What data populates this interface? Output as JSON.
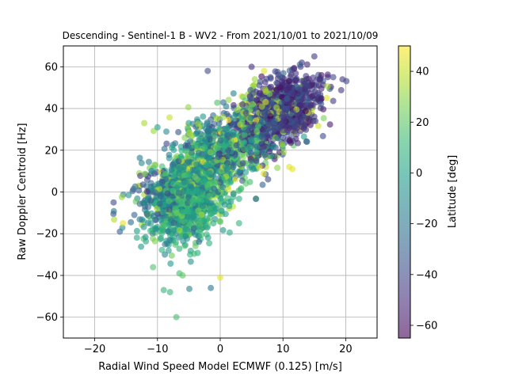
{
  "chart_data": {
    "type": "scatter",
    "title": "Descending - Sentinel-1 B - WV2 - From 2021/10/01 to 2021/10/09",
    "xlabel": "Radial Wind Speed Model ECMWF (0.125) [m/s]",
    "ylabel": "Raw Doppler Centroid [Hz]",
    "xlim": [
      -25,
      25
    ],
    "ylim": [
      -70,
      70
    ],
    "xticks": [
      -20,
      -10,
      0,
      10,
      20
    ],
    "yticks": [
      -60,
      -40,
      -20,
      0,
      20,
      40,
      60
    ],
    "grid": true,
    "point_alpha": 0.6,
    "colormap": "viridis",
    "colorbar": {
      "label": "Latitude [deg]",
      "range": [
        -65,
        50
      ],
      "ticks": [
        -60,
        -40,
        -20,
        0,
        20,
        40
      ]
    },
    "colormap_stops": [
      "#440154",
      "#482878",
      "#3e4989",
      "#31688e",
      "#26828e",
      "#1f9e89",
      "#35b779",
      "#6ece58",
      "#b5de2b",
      "#fde725"
    ],
    "clusters": [
      {
        "cx": 10,
        "cy": 40,
        "sx": 3.0,
        "sy": 8,
        "rho": 0.35,
        "n": 750,
        "lat_mean": -45,
        "lat_sd": 9
      },
      {
        "cx": 8,
        "cy": 36,
        "sx": 3.5,
        "sy": 8,
        "rho": 0.3,
        "n": 110,
        "lat_mean": 35,
        "lat_sd": 8
      },
      {
        "cx": -5,
        "cy": -5,
        "sx": 3.0,
        "sy": 10,
        "rho": 0.25,
        "n": 750,
        "lat_mean": 5,
        "lat_sd": 12
      },
      {
        "cx": -8,
        "cy": 0,
        "sx": 3.5,
        "sy": 8,
        "rho": 0.2,
        "n": 260,
        "lat_mean": -20,
        "lat_sd": 12
      },
      {
        "cx": 0,
        "cy": 20,
        "sx": 4.0,
        "sy": 10,
        "rho": 0.4,
        "n": 450,
        "lat_mean": -5,
        "lat_sd": 20
      },
      {
        "cx": 5,
        "cy": 25,
        "sx": 4.0,
        "sy": 9,
        "rho": 0.3,
        "n": 170,
        "lat_mean": -35,
        "lat_sd": 12
      },
      {
        "cx": -2,
        "cy": 10,
        "sx": 5.0,
        "sy": 12,
        "rho": 0.3,
        "n": 170,
        "lat_mean": 30,
        "lat_sd": 10
      }
    ],
    "points": [
      {
        "x": -17,
        "y": -5,
        "lat": -40
      },
      {
        "x": -16,
        "y": -19,
        "lat": -30
      },
      {
        "x": -15.5,
        "y": -15,
        "lat": 45
      },
      {
        "x": -7,
        "y": -60,
        "lat": 15
      },
      {
        "x": -8,
        "y": -48,
        "lat": 10
      },
      {
        "x": -1.5,
        "y": -46,
        "lat": -20
      },
      {
        "x": 0,
        "y": -41,
        "lat": 45
      },
      {
        "x": -6,
        "y": -40,
        "lat": 20
      },
      {
        "x": -6.5,
        "y": -39,
        "lat": 15
      },
      {
        "x": -2,
        "y": 58,
        "lat": -40
      },
      {
        "x": 5,
        "y": 60,
        "lat": -50
      },
      {
        "x": 15,
        "y": 65,
        "lat": -45
      },
      {
        "x": 18,
        "y": 55,
        "lat": -40
      },
      {
        "x": 19.5,
        "y": 54,
        "lat": -45
      },
      {
        "x": 17,
        "y": 45,
        "lat": 45
      },
      {
        "x": 11.5,
        "y": 11,
        "lat": 45
      },
      {
        "x": 11,
        "y": 12,
        "lat": 45
      },
      {
        "x": 3,
        "y": -15,
        "lat": 10
      },
      {
        "x": -13,
        "y": 3,
        "lat": 45
      },
      {
        "x": 10,
        "y": 26,
        "lat": -40
      },
      {
        "x": 14,
        "y": 38,
        "lat": 40
      },
      {
        "x": 13,
        "y": 62,
        "lat": -45
      },
      {
        "x": 7,
        "y": 58,
        "lat": 45
      },
      {
        "x": -10,
        "y": 31,
        "lat": 0
      },
      {
        "x": -9,
        "y": -47,
        "lat": 10
      },
      {
        "x": -12,
        "y": -7,
        "lat": -40
      }
    ]
  }
}
